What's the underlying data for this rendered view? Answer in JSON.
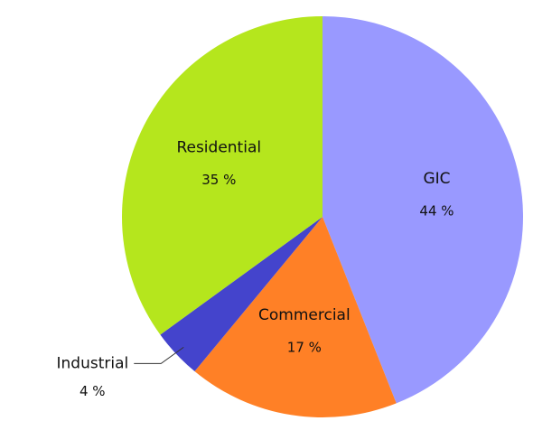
{
  "chart_data": {
    "type": "pie",
    "categories": [
      "GIC",
      "Commercial",
      "Industrial",
      "Residential"
    ],
    "values": [
      44,
      17,
      4,
      35
    ],
    "value_labels": [
      "44 %",
      "17 %",
      "4 %",
      "35 %"
    ],
    "colors": [
      "#9999ff",
      "#ff8026",
      "#4444cc",
      "#b5e61d"
    ]
  }
}
